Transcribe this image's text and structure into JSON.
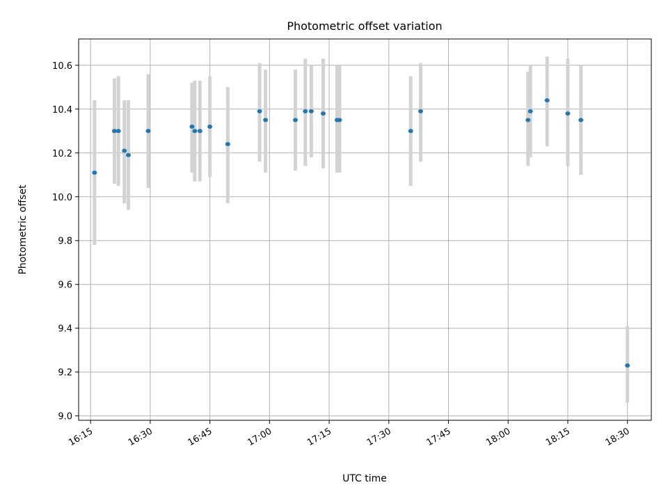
{
  "chart_data": {
    "type": "scatter",
    "title": "Photometric offset variation",
    "xlabel": "UTC time",
    "ylabel": "Photometric offset",
    "x_format": "HH:MM",
    "xlim": [
      "16:12",
      "18:36"
    ],
    "ylim": [
      8.98,
      10.72
    ],
    "x_ticks": [
      "16:15",
      "16:30",
      "16:45",
      "17:00",
      "17:15",
      "17:30",
      "17:45",
      "18:00",
      "18:15",
      "18:30"
    ],
    "y_ticks": [
      "9.0",
      "9.2",
      "9.4",
      "9.6",
      "9.8",
      "10.0",
      "10.2",
      "10.4",
      "10.6"
    ],
    "grid": true,
    "colors": {
      "point": "#1f77b4",
      "errorbar": "#d3d3d3",
      "grid": "#b0b0b0"
    },
    "points": [
      {
        "x": "16:16",
        "y": 10.11,
        "ylow": 9.78,
        "yhigh": 10.44
      },
      {
        "x": "16:21",
        "y": 10.3,
        "ylow": 10.06,
        "yhigh": 10.54
      },
      {
        "x": "16:22",
        "y": 10.3,
        "ylow": 10.05,
        "yhigh": 10.55
      },
      {
        "x": "16:23.5",
        "y": 10.21,
        "ylow": 9.97,
        "yhigh": 10.44
      },
      {
        "x": "16:24.5",
        "y": 10.19,
        "ylow": 9.94,
        "yhigh": 10.44
      },
      {
        "x": "16:29.5",
        "y": 10.3,
        "ylow": 10.04,
        "yhigh": 10.56
      },
      {
        "x": "16:40.5",
        "y": 10.32,
        "ylow": 10.11,
        "yhigh": 10.52
      },
      {
        "x": "16:41.2",
        "y": 10.3,
        "ylow": 10.07,
        "yhigh": 10.53
      },
      {
        "x": "16:42.5",
        "y": 10.3,
        "ylow": 10.07,
        "yhigh": 10.53
      },
      {
        "x": "16:45",
        "y": 10.32,
        "ylow": 10.09,
        "yhigh": 10.55
      },
      {
        "x": "16:49.5",
        "y": 10.24,
        "ylow": 9.97,
        "yhigh": 10.5
      },
      {
        "x": "16:57.5",
        "y": 10.39,
        "ylow": 10.16,
        "yhigh": 10.61
      },
      {
        "x": "16:59",
        "y": 10.35,
        "ylow": 10.11,
        "yhigh": 10.58
      },
      {
        "x": "17:06.5",
        "y": 10.35,
        "ylow": 10.12,
        "yhigh": 10.58
      },
      {
        "x": "17:09",
        "y": 10.39,
        "ylow": 10.14,
        "yhigh": 10.63
      },
      {
        "x": "17:10.5",
        "y": 10.39,
        "ylow": 10.18,
        "yhigh": 10.6
      },
      {
        "x": "17:13.5",
        "y": 10.38,
        "ylow": 10.13,
        "yhigh": 10.63
      },
      {
        "x": "17:17",
        "y": 10.35,
        "ylow": 10.11,
        "yhigh": 10.6
      },
      {
        "x": "17:17.6",
        "y": 10.35,
        "ylow": 10.11,
        "yhigh": 10.6
      },
      {
        "x": "17:35.5",
        "y": 10.3,
        "ylow": 10.05,
        "yhigh": 10.55
      },
      {
        "x": "17:38",
        "y": 10.39,
        "ylow": 10.16,
        "yhigh": 10.61
      },
      {
        "x": "18:05",
        "y": 10.35,
        "ylow": 10.14,
        "yhigh": 10.57
      },
      {
        "x": "18:05.6",
        "y": 10.39,
        "ylow": 10.18,
        "yhigh": 10.6
      },
      {
        "x": "18:09.8",
        "y": 10.44,
        "ylow": 10.23,
        "yhigh": 10.64
      },
      {
        "x": "18:15",
        "y": 10.38,
        "ylow": 10.14,
        "yhigh": 10.63
      },
      {
        "x": "18:18.3",
        "y": 10.35,
        "ylow": 10.1,
        "yhigh": 10.6
      },
      {
        "x": "18:30",
        "y": 9.23,
        "ylow": 9.06,
        "yhigh": 9.41
      }
    ]
  }
}
